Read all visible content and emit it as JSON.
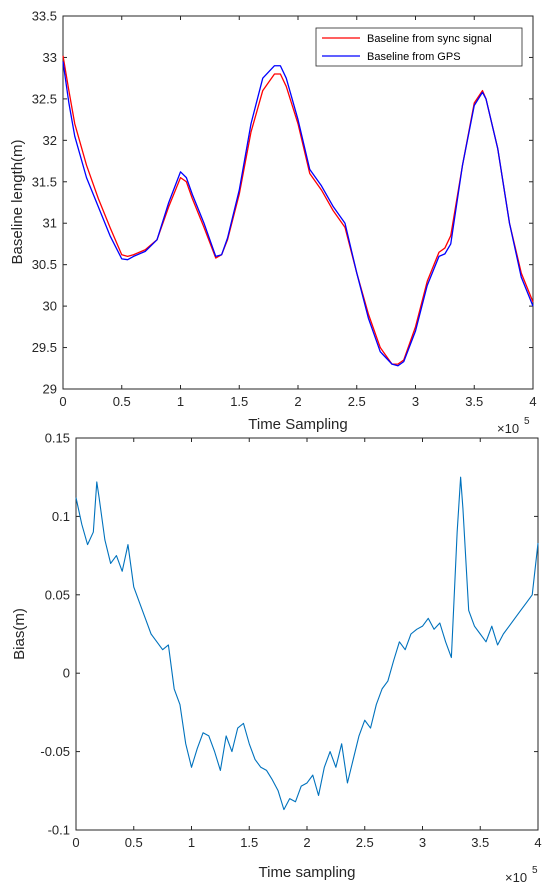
{
  "chart_data": [
    {
      "type": "line",
      "xlabel": "Time Sampling",
      "ylabel": "Baseline length(m)",
      "x_multiplier_base": "×10",
      "x_multiplier_exp": "5",
      "xlim": [
        0,
        4
      ],
      "ylim": [
        29,
        33.5
      ],
      "xticks": [
        "0",
        "0.5",
        "1",
        "1.5",
        "2",
        "2.5",
        "3",
        "3.5",
        "4"
      ],
      "yticks": [
        "29",
        "29.5",
        "30",
        "30.5",
        "31",
        "31.5",
        "32",
        "32.5",
        "33",
        "33.5"
      ],
      "grid": false,
      "legend_position": "top-right",
      "series": [
        {
          "name": "Baseline from sync signal",
          "color": "#ff0000",
          "x": [
            0,
            0.05,
            0.1,
            0.2,
            0.3,
            0.4,
            0.5,
            0.55,
            0.6,
            0.7,
            0.8,
            0.9,
            1.0,
            1.05,
            1.1,
            1.2,
            1.3,
            1.35,
            1.4,
            1.5,
            1.6,
            1.7,
            1.8,
            1.85,
            1.9,
            2.0,
            2.1,
            2.2,
            2.3,
            2.4,
            2.5,
            2.6,
            2.7,
            2.8,
            2.85,
            2.9,
            3.0,
            3.1,
            3.2,
            3.25,
            3.3,
            3.4,
            3.5,
            3.57,
            3.6,
            3.7,
            3.8,
            3.9,
            4.0
          ],
          "y": [
            33.02,
            32.6,
            32.2,
            31.7,
            31.3,
            30.95,
            30.62,
            30.6,
            30.62,
            30.68,
            30.8,
            31.2,
            31.55,
            31.5,
            31.3,
            30.95,
            30.58,
            30.62,
            30.8,
            31.35,
            32.1,
            32.6,
            32.8,
            32.8,
            32.65,
            32.2,
            31.6,
            31.4,
            31.15,
            30.95,
            30.4,
            29.9,
            29.5,
            29.3,
            29.3,
            29.35,
            29.75,
            30.3,
            30.65,
            30.7,
            30.85,
            31.7,
            32.45,
            32.6,
            32.5,
            31.9,
            31.0,
            30.4,
            30.05
          ]
        },
        {
          "name": "Baseline from GPS",
          "color": "#0000ff",
          "x": [
            0,
            0.05,
            0.1,
            0.2,
            0.3,
            0.4,
            0.5,
            0.55,
            0.6,
            0.7,
            0.8,
            0.9,
            1.0,
            1.05,
            1.1,
            1.2,
            1.3,
            1.35,
            1.4,
            1.5,
            1.6,
            1.7,
            1.8,
            1.85,
            1.9,
            2.0,
            2.1,
            2.2,
            2.3,
            2.4,
            2.5,
            2.6,
            2.7,
            2.8,
            2.85,
            2.9,
            3.0,
            3.1,
            3.2,
            3.25,
            3.3,
            3.4,
            3.5,
            3.57,
            3.6,
            3.7,
            3.8,
            3.9,
            4.0
          ],
          "y": [
            32.95,
            32.45,
            32.05,
            31.55,
            31.2,
            30.85,
            30.57,
            30.56,
            30.6,
            30.66,
            30.8,
            31.25,
            31.62,
            31.55,
            31.35,
            31.0,
            30.6,
            30.62,
            30.82,
            31.4,
            32.2,
            32.75,
            32.9,
            32.9,
            32.75,
            32.25,
            31.65,
            31.45,
            31.2,
            31.0,
            30.4,
            29.85,
            29.45,
            29.3,
            29.28,
            29.33,
            29.7,
            30.25,
            30.6,
            30.63,
            30.75,
            31.7,
            32.42,
            32.58,
            32.5,
            31.9,
            31.0,
            30.35,
            30.0
          ]
        }
      ]
    },
    {
      "type": "line",
      "xlabel": "Time sampling",
      "ylabel": "Bias(m)",
      "x_multiplier_base": "×10",
      "x_multiplier_exp": "5",
      "xlim": [
        0,
        4
      ],
      "ylim": [
        -0.1,
        0.15
      ],
      "xticks": [
        "0",
        "0.5",
        "1",
        "1.5",
        "2",
        "2.5",
        "3",
        "3.5",
        "4"
      ],
      "yticks": [
        "-0.1",
        "-0.05",
        "0",
        "0.05",
        "0.1",
        "0.15"
      ],
      "grid": false,
      "series": [
        {
          "color": "#0072bd",
          "x": [
            0,
            0.05,
            0.1,
            0.15,
            0.18,
            0.2,
            0.25,
            0.3,
            0.35,
            0.4,
            0.45,
            0.5,
            0.55,
            0.6,
            0.65,
            0.7,
            0.75,
            0.8,
            0.85,
            0.9,
            0.95,
            1.0,
            1.05,
            1.1,
            1.15,
            1.2,
            1.25,
            1.3,
            1.35,
            1.4,
            1.45,
            1.5,
            1.55,
            1.6,
            1.65,
            1.7,
            1.75,
            1.8,
            1.85,
            1.9,
            1.95,
            2.0,
            2.05,
            2.1,
            2.15,
            2.2,
            2.25,
            2.3,
            2.35,
            2.4,
            2.45,
            2.5,
            2.55,
            2.6,
            2.65,
            2.7,
            2.75,
            2.8,
            2.85,
            2.9,
            2.95,
            3.0,
            3.05,
            3.1,
            3.15,
            3.2,
            3.25,
            3.3,
            3.33,
            3.35,
            3.4,
            3.45,
            3.5,
            3.55,
            3.6,
            3.65,
            3.7,
            3.75,
            3.8,
            3.85,
            3.9,
            3.95,
            4.0
          ],
          "y": [
            0.112,
            0.095,
            0.082,
            0.09,
            0.122,
            0.112,
            0.085,
            0.07,
            0.075,
            0.065,
            0.082,
            0.055,
            0.045,
            0.035,
            0.025,
            0.02,
            0.015,
            0.018,
            -0.01,
            -0.02,
            -0.045,
            -0.06,
            -0.048,
            -0.038,
            -0.04,
            -0.05,
            -0.062,
            -0.04,
            -0.05,
            -0.035,
            -0.032,
            -0.045,
            -0.055,
            -0.06,
            -0.062,
            -0.068,
            -0.075,
            -0.087,
            -0.08,
            -0.082,
            -0.072,
            -0.07,
            -0.065,
            -0.078,
            -0.06,
            -0.05,
            -0.06,
            -0.045,
            -0.07,
            -0.055,
            -0.04,
            -0.03,
            -0.035,
            -0.02,
            -0.01,
            -0.005,
            0.008,
            0.02,
            0.015,
            0.025,
            0.028,
            0.03,
            0.035,
            0.028,
            0.032,
            0.02,
            0.01,
            0.09,
            0.125,
            0.105,
            0.04,
            0.03,
            0.025,
            0.02,
            0.03,
            0.018,
            0.025,
            0.03,
            0.035,
            0.04,
            0.045,
            0.05,
            0.083
          ]
        }
      ]
    }
  ]
}
